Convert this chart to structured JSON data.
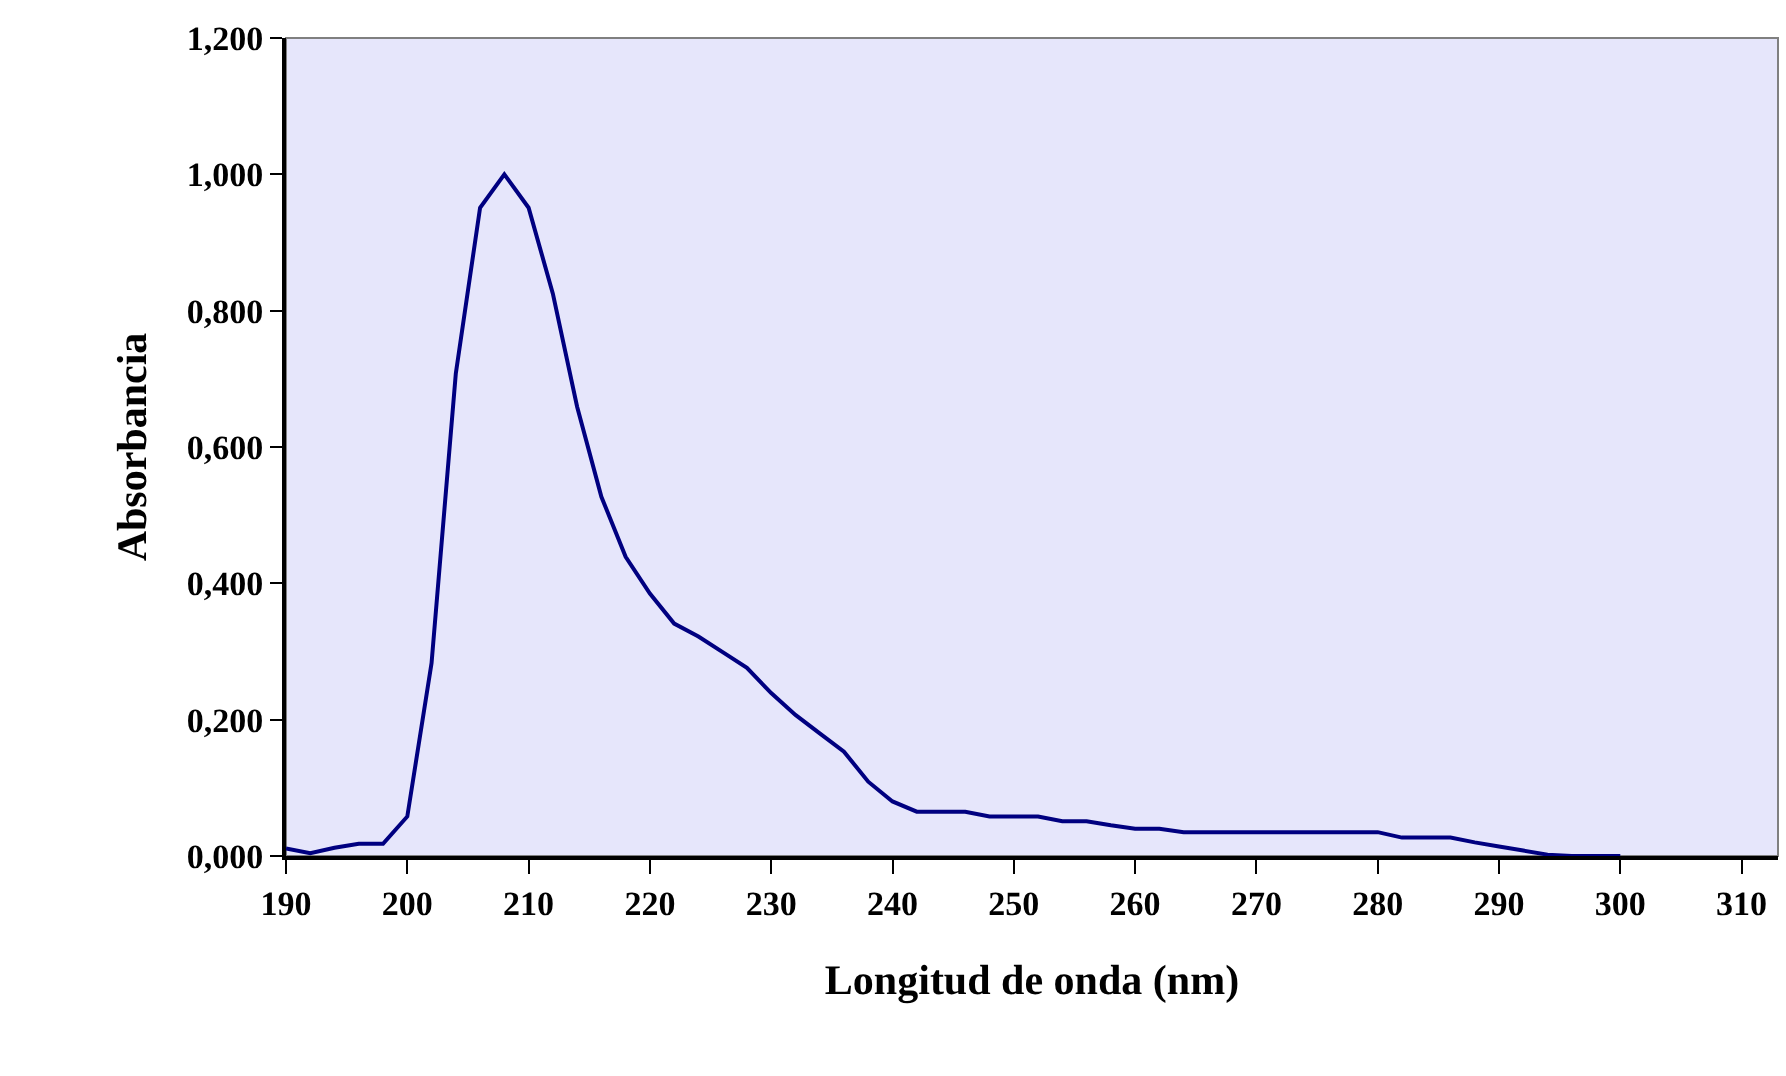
{
  "chart_data": {
    "type": "line",
    "xlabel": "Longitud de onda (nm)",
    "ylabel": "Absorbancia",
    "x": [
      190,
      192,
      194,
      196,
      198,
      200,
      202,
      204,
      206,
      208,
      210,
      212,
      214,
      216,
      218,
      220,
      222,
      224,
      226,
      228,
      230,
      232,
      234,
      236,
      238,
      240,
      242,
      244,
      246,
      248,
      250,
      252,
      254,
      256,
      258,
      260,
      262,
      264,
      266,
      268,
      270,
      272,
      274,
      276,
      278,
      280,
      282,
      284,
      286,
      288,
      290,
      292,
      294,
      296,
      298,
      300
    ],
    "series": [
      {
        "color": "#000080",
        "values": [
          0.011,
          0.004,
          0.012,
          0.018,
          0.018,
          0.058,
          0.283,
          0.708,
          0.951,
          1.0,
          0.951,
          0.825,
          0.659,
          0.527,
          0.439,
          0.385,
          0.341,
          0.322,
          0.299,
          0.276,
          0.239,
          0.207,
          0.18,
          0.153,
          0.109,
          0.08,
          0.065,
          0.065,
          0.065,
          0.058,
          0.058,
          0.058,
          0.051,
          0.051,
          0.045,
          0.04,
          0.04,
          0.035,
          0.035,
          0.035,
          0.035,
          0.035,
          0.035,
          0.035,
          0.035,
          0.035,
          0.027,
          0.027,
          0.027,
          0.02,
          0.014,
          0.008,
          0.002,
          0,
          0,
          0
        ]
      }
    ],
    "xlim": [
      190,
      313
    ],
    "xticks": [
      190,
      200,
      210,
      220,
      230,
      240,
      250,
      260,
      270,
      280,
      290,
      300,
      310
    ],
    "ylim": [
      0,
      1.2
    ],
    "yticks": [
      {
        "value": 0,
        "label": "0,000"
      },
      {
        "value": 0.2,
        "label": "0,200"
      },
      {
        "value": 0.4,
        "label": "0,400"
      },
      {
        "value": 0.6,
        "label": "0,600"
      },
      {
        "value": 0.8,
        "label": "0,800"
      },
      {
        "value": 1.0,
        "label": "1,000"
      },
      {
        "value": 1.2,
        "label": "1,200"
      }
    ],
    "grid": false,
    "marker": "none",
    "line_style": "solid"
  }
}
